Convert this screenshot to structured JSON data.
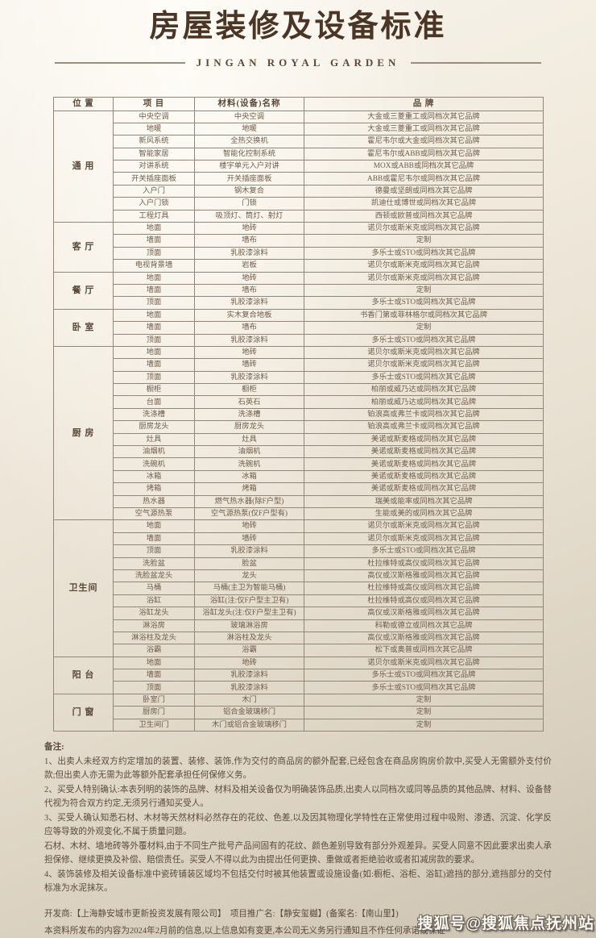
{
  "page": {
    "title": "房屋装修及设备标准",
    "subtitle": "JINGAN ROYAL GARDEN"
  },
  "table": {
    "headers": [
      "位 置",
      "项 目",
      "材料(设备)名称",
      "品 牌"
    ],
    "sections": [
      {
        "location": "通 用",
        "rows": [
          [
            "中央空调",
            "中央空调",
            "大金或三菱重工或同档次其它品牌"
          ],
          [
            "地暖",
            "地暖",
            "大金或三菱重工或同档次其它品牌"
          ],
          [
            "新风系统",
            "全热交换机",
            "霍尼韦尔或大金或同档次其它品牌"
          ],
          [
            "智能家居",
            "智能化控制系统",
            "霍尼韦尔或ABB或同档次其它品牌"
          ],
          [
            "对讲系统",
            "楼宇单元入户对讲",
            "MOX或ABB或同档次其它品牌"
          ],
          [
            "开关插座面板",
            "开关插座面板",
            "ABB或霍尼韦尔或同档次其它品牌"
          ],
          [
            "入户门",
            "钢木复合",
            "德曼或坚朗或同档次其它品牌"
          ],
          [
            "入户门锁",
            "门锁",
            "凯迪仕或博世或同档次其它品牌"
          ],
          [
            "工程灯具",
            "吸顶灯、筒灯、射灯",
            "西顿或欧普或同档次其它品牌"
          ]
        ]
      },
      {
        "location": "客 厅",
        "rows": [
          [
            "地面",
            "地砖",
            "诺贝尔或斯米克或同档次其它品牌"
          ],
          [
            "墙面",
            "墙布",
            "定制"
          ],
          [
            "顶面",
            "乳胶漆涂料",
            "多乐士或STO或同档次其它品牌"
          ],
          [
            "电视背景墙",
            "岩板",
            "诺贝尔或斯米克或同档次其它品牌"
          ]
        ]
      },
      {
        "location": "餐 厅",
        "rows": [
          [
            "地面",
            "地砖",
            "诺贝尔或斯米克或同档次其它品牌"
          ],
          [
            "墙面",
            "墙布",
            "定制"
          ],
          [
            "顶面",
            "乳胶漆涂料",
            "多乐士或STO或同档次其它品牌"
          ]
        ]
      },
      {
        "location": "卧 室",
        "rows": [
          [
            "地面",
            "实木复合地板",
            "书香门第或菲林格尔或同档次其它品牌"
          ],
          [
            "墙面",
            "墙布",
            "定制"
          ],
          [
            "顶面",
            "乳胶漆涂料",
            "多乐士或STO或同档次其它品牌"
          ]
        ]
      },
      {
        "location": "厨 房",
        "rows": [
          [
            "地面",
            "地砖",
            "诺贝尔或斯米克或同档次其它品牌"
          ],
          [
            "墙面",
            "墙砖",
            "诺贝尔或斯米克或同档次其它品牌"
          ],
          [
            "顶面",
            "乳胶漆涂料",
            "多乐士或STO或同档次其它品牌"
          ],
          [
            "橱柜",
            "橱柜",
            "柏丽或威乃达或同档次其它品牌"
          ],
          [
            "台面",
            "石英石",
            "柏丽或威乃达或同档次其它品牌"
          ],
          [
            "洗涤槽",
            "洗涤槽",
            "铂浪高或弗兰卡或同档次其它品牌"
          ],
          [
            "厨房龙头",
            "厨房龙头",
            "铂浪高或弗兰卡或同档次其它品牌"
          ],
          [
            "灶具",
            "灶具",
            "美诺或斯麦格或同档次其它品牌"
          ],
          [
            "油烟机",
            "油烟机",
            "美诺或斯麦格或同档次其它品牌"
          ],
          [
            "洗碗机",
            "洗碗机",
            "美诺或斯麦格或同档次其它品牌"
          ],
          [
            "冰箱",
            "冰箱",
            "美诺或斯麦格或同档次其它品牌"
          ],
          [
            "烤箱",
            "烤箱",
            "美诺或斯麦格或同档次其它品牌"
          ],
          [
            "热水器",
            "燃气热水器(除F户型)",
            "瑞美或能率或同档次其它品牌"
          ],
          [
            "空气源热泵",
            "空气源热泵(仅F户型有)",
            "生能或美的或同档次其它品牌"
          ]
        ]
      },
      {
        "location": "卫生间",
        "rows": [
          [
            "地面",
            "地砖",
            "诺贝尔或斯米克或同档次其它品牌"
          ],
          [
            "墙面",
            "墙砖",
            "诺贝尔或斯米克或同档次其它品牌"
          ],
          [
            "顶面",
            "乳胶漆涂料",
            "多乐士或STO或同档次其它品牌"
          ],
          [
            "洗脸盆",
            "脸盆",
            "杜拉维特或高仪或同档次其它品牌"
          ],
          [
            "洗脸盆龙头",
            "龙头",
            "高仪或汉斯格雅或同档次其它品牌"
          ],
          [
            "马桶",
            "马桶(主卫为智能马桶)",
            "杜拉维特或高仪或同档次其它品牌"
          ],
          [
            "浴缸",
            "浴缸(注:仅F户型主卫有)",
            "杜拉维特或高仪或同档次其它品牌"
          ],
          [
            "浴缸龙头",
            "浴缸龙头(注:仅F户型主卫有)",
            "高仪或汉斯格雅或同档次其它品牌"
          ],
          [
            "淋浴房",
            "玻璃淋浴房",
            "科勒或德立或同档次其它品牌"
          ],
          [
            "淋浴柱及龙头",
            "淋浴柱及龙头",
            "高仪或汉斯格雅或同档次其它品牌"
          ],
          [
            "浴霸",
            "浴霸",
            "松下或奥普或同档次其它品牌"
          ]
        ]
      },
      {
        "location": "阳 台",
        "rows": [
          [
            "地面",
            "地砖",
            "诺贝尔或斯米克或同档次其它品牌"
          ],
          [
            "墙面",
            "乳胶漆涂料",
            "多乐士或STO或同档次其它品牌"
          ],
          [
            "顶面",
            "乳胶漆涂料",
            "多乐士或STO或同档次其它品牌"
          ]
        ]
      },
      {
        "location": "门 窗",
        "rows": [
          [
            "卧室门",
            "木门",
            "定制"
          ],
          [
            "厨房门",
            "铝合金玻璃移门",
            "定制"
          ],
          [
            "卫生间门",
            "木门或铝合金玻璃移门",
            "定制"
          ]
        ]
      }
    ]
  },
  "notes": {
    "label": "备注:",
    "items": [
      "1、出卖人未经双方约定增加的装置、装修、装饰,作为交付的商品房的额外配套,已经包含在商品房购房价款中,买受人无需额外支付价款;但出卖人亦无需为此等额外配套承担任何保修义务。",
      "2、买受人特别确认:本表列明的装饰的品牌、材料及相关设备仅为明确装饰品质,出卖人以同档次或同等品质的其他品牌、材料、设备替代视为符合双方约定,无须另行通知买受人。",
      "3、买受人确认知悉石材、木材等天然材料必然存在的花纹、色差,以及因其物理化学特性在正常使用过程中吸附、渗透、沉淀、化学反应等导致的外观变化,不属于质量问题。",
      "石材、木材、墙地砖等外覆材料,由于不同生产批号产品间固有的花纹、颜色差别导致有部分外观差异。买受人同意不因此要求出卖人承担保修、继续更换及补偿、赔偿责任。买受人不得以此为由提出任何更换、重做或者拒绝验收或者扣减房款的要求。",
      "4、装饰装修及相关设备标准中瓷砖铺装区域均不包括交付时被其他装置或设施设备(如:橱柜、浴柜、浴缸)遮挡的部分,遮挡部分的交付标准为水泥抹灰。"
    ]
  },
  "footer": {
    "developer_line": "开发商:【上海静安城市更新投资发展有限公司】　项目推广名:【静安玺樾】(备案名:【南山里】)",
    "disclaimer": "本资料所发布的内容为2024年2月前的信息,以上信息如有变更,本公司无义务另行通知且不作任何承诺或保证"
  },
  "watermark": "搜狐号@搜狐焦点抚州站",
  "colors": {
    "title": "#4b3524",
    "table_border": "#92857a",
    "table_text": "#6e5b49",
    "background_light": "#f8f5ef",
    "background_dark": "#ccc2b0"
  }
}
